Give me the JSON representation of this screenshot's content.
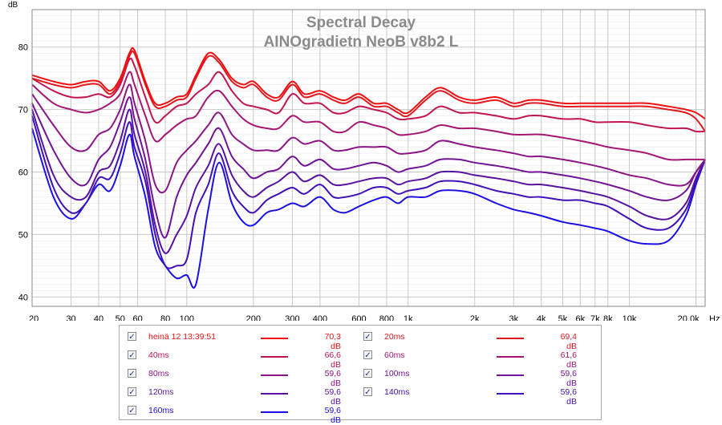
{
  "chart_data": {
    "type": "line",
    "title": "Spectral Decay",
    "subtitle": "AINOgradietn NeoB v8b2 L",
    "ylabel": "dB",
    "xlabel": "Hz",
    "xscale": "log",
    "xlim": [
      20,
      22000
    ],
    "ylim": [
      38.5,
      86
    ],
    "yticks": [
      40,
      50,
      60,
      70,
      80
    ],
    "xticks": [
      {
        "v": 20,
        "label": "20"
      },
      {
        "v": 30,
        "label": "30"
      },
      {
        "v": 40,
        "label": "40"
      },
      {
        "v": 50,
        "label": "50"
      },
      {
        "v": 60,
        "label": "60"
      },
      {
        "v": 80,
        "label": "80"
      },
      {
        "v": 100,
        "label": "100"
      },
      {
        "v": 200,
        "label": "200"
      },
      {
        "v": 300,
        "label": "300"
      },
      {
        "v": 400,
        "label": "400"
      },
      {
        "v": 600,
        "label": "600"
      },
      {
        "v": 800,
        "label": "800"
      },
      {
        "v": 1000,
        "label": "1k"
      },
      {
        "v": 2000,
        "label": "2k"
      },
      {
        "v": 3000,
        "label": "3k"
      },
      {
        "v": 4000,
        "label": "4k"
      },
      {
        "v": 5000,
        "label": "5k"
      },
      {
        "v": 6000,
        "label": "6k"
      },
      {
        "v": 7000,
        "label": "7k"
      },
      {
        "v": 8000,
        "label": "8k"
      },
      {
        "v": 10000,
        "label": "10k"
      },
      {
        "v": 20000,
        "label": "20,0k"
      }
    ],
    "grid": true,
    "x": [
      20,
      25,
      30,
      35,
      40,
      45,
      50,
      55,
      58,
      65,
      72,
      80,
      90,
      100,
      110,
      125,
      140,
      160,
      180,
      200,
      230,
      260,
      300,
      340,
      400,
      460,
      520,
      600,
      700,
      800,
      900,
      1000,
      1200,
      1400,
      1700,
      2000,
      2500,
      3000,
      3500,
      4000,
      5000,
      6000,
      7000,
      8000,
      10000,
      12000,
      15000,
      18000,
      20000,
      22000
    ],
    "series": [
      {
        "name": "heinä 12 13:39:51",
        "value_label": "70,3 dB",
        "color": "#ee1010",
        "values": [
          75.5,
          74.5,
          74,
          74.5,
          74.5,
          73,
          75,
          79,
          79.5,
          74.5,
          71,
          71,
          72,
          72.5,
          75.5,
          79,
          78,
          75,
          74,
          74.5,
          72.5,
          72,
          74.5,
          72.5,
          73,
          72,
          71.5,
          72.5,
          71,
          71,
          70,
          69.5,
          72,
          73.5,
          72,
          71.5,
          72,
          71,
          71.5,
          71.5,
          71,
          71,
          71,
          71,
          71,
          71,
          70.5,
          70,
          69.5,
          68.5
        ]
      },
      {
        "name": "20ms",
        "value_label": "69,4 dB",
        "color": "#e4171e",
        "values": [
          75,
          74,
          73.5,
          74,
          74,
          72.5,
          74.5,
          78.5,
          79,
          74,
          70.5,
          70.5,
          71.5,
          72,
          75,
          78.5,
          77.5,
          74.5,
          73.5,
          74,
          72,
          71.5,
          74,
          72,
          72.5,
          71.5,
          71,
          72,
          70.5,
          70.5,
          69.5,
          69,
          71.5,
          73,
          71.5,
          71,
          71.5,
          70.5,
          71,
          71,
          70.5,
          70.5,
          70.5,
          70.5,
          70.5,
          70.5,
          70,
          69.5,
          68.5,
          66.5
        ]
      },
      {
        "name": "40ms",
        "value_label": "66,6 dB",
        "color": "#c2154f",
        "values": [
          75,
          73,
          72,
          72,
          72.5,
          72,
          74,
          78,
          77,
          72,
          68,
          69,
          70.5,
          71,
          72.5,
          74,
          76,
          73,
          71,
          70.5,
          70,
          69.5,
          72.5,
          71,
          71,
          69.5,
          69.5,
          70.5,
          70,
          69.5,
          68.5,
          68.5,
          69,
          70.5,
          69.5,
          69.5,
          69,
          68.5,
          69,
          69,
          68.5,
          68.5,
          68,
          68,
          68,
          67.5,
          67,
          67,
          66.5,
          66.5
        ]
      },
      {
        "name": "60ms",
        "value_label": "61,6 dB",
        "color": "#a51672",
        "values": [
          74,
          71,
          70,
          69.5,
          70,
          71,
          72.5,
          76,
          74,
          69,
          65,
          66,
          67.5,
          68.5,
          69,
          72,
          73,
          70.5,
          68.5,
          67.5,
          67,
          67,
          69,
          68,
          68,
          66.5,
          66.5,
          68,
          67.5,
          67,
          66,
          66,
          66.5,
          67.5,
          67,
          67,
          66.5,
          66,
          66,
          66,
          65.5,
          65,
          64.5,
          64,
          63.5,
          63,
          62,
          62,
          62,
          62
        ]
      },
      {
        "name": "80ms",
        "value_label": "59,6 dB",
        "color": "#8b1487",
        "values": [
          72.5,
          67.5,
          64,
          63.5,
          66,
          67,
          70,
          74,
          71,
          65,
          58,
          57,
          61.5,
          63.5,
          65,
          67.5,
          69.5,
          66,
          64.5,
          63.5,
          63.5,
          63.5,
          65.5,
          64.5,
          65,
          63.5,
          63.5,
          64,
          64,
          64,
          63,
          63,
          63.5,
          65,
          64.5,
          64,
          63.5,
          63,
          62.5,
          62.5,
          62,
          61.5,
          61,
          60.5,
          59.5,
          59,
          58,
          58,
          60,
          62
        ]
      },
      {
        "name": "100ms",
        "value_label": "59,6 dB",
        "color": "#701394",
        "values": [
          71,
          63.5,
          59,
          58,
          62,
          64,
          68,
          72,
          68.5,
          62,
          54,
          49.5,
          56,
          59.5,
          61.5,
          64.5,
          67,
          62.5,
          60.5,
          59,
          60,
          60.5,
          62.5,
          61,
          62,
          60.5,
          60.5,
          61,
          61.5,
          61,
          60,
          60.5,
          61,
          62,
          62,
          61.5,
          61,
          60.5,
          60,
          60,
          59.5,
          59,
          58.5,
          58,
          57,
          56,
          55.5,
          57,
          60,
          62
        ]
      },
      {
        "name": "120ms",
        "value_label": "59,6 dB",
        "color": "#57139f",
        "values": [
          70,
          59.5,
          56,
          56,
          60,
          61,
          65,
          70,
          66,
          60,
          51.5,
          47,
          50,
          53,
          57.5,
          61,
          64.5,
          59.5,
          57,
          56,
          57.5,
          58.5,
          60,
          58.5,
          59.5,
          58,
          58,
          58.5,
          59,
          59,
          58,
          58.5,
          59,
          60,
          60,
          59.5,
          59,
          58.5,
          58,
          58,
          57.5,
          57,
          56.5,
          56,
          54.5,
          53,
          52.5,
          55,
          59,
          62
        ]
      },
      {
        "name": "140ms",
        "value_label": "59,6 dB",
        "color": "#3f11b7",
        "values": [
          69,
          57.5,
          53.5,
          55,
          59,
          59,
          63,
          68,
          64,
          58.5,
          50,
          45,
          45,
          46,
          53.5,
          58,
          63,
          57,
          54.5,
          53.5,
          55.5,
          56.5,
          57.5,
          56.5,
          58,
          56,
          56,
          56.5,
          57.5,
          57.5,
          56.5,
          57,
          57.5,
          58.5,
          58.5,
          58,
          57,
          56.5,
          56,
          56,
          55.5,
          55.5,
          55,
          54.5,
          52.5,
          51,
          51,
          54,
          58.5,
          62
        ]
      },
      {
        "name": "160ms",
        "value_label": "59,6 dB",
        "color": "#1b0fe6",
        "values": [
          67,
          56,
          52.5,
          55,
          58,
          57,
          61,
          66,
          62.5,
          56,
          48,
          45,
          43,
          43.5,
          42,
          54,
          61.5,
          55,
          52,
          51.5,
          53.5,
          54,
          55,
          54.5,
          56,
          54,
          53.5,
          54.5,
          55.5,
          56,
          55,
          56,
          56,
          57,
          57,
          56.5,
          55,
          54,
          53.5,
          53,
          52,
          51.5,
          51,
          50.5,
          49,
          48.5,
          49,
          53,
          58,
          62
        ]
      }
    ]
  },
  "legend": {
    "items": [
      {
        "label": "heinä 12 13:39:51",
        "value": "70,3 dB",
        "color": "#ee1010",
        "checked": true
      },
      {
        "label": "20ms",
        "value": "69,4 dB",
        "color": "#e4171e",
        "checked": true
      },
      {
        "label": "40ms",
        "value": "66,6 dB",
        "color": "#c2154f",
        "checked": true
      },
      {
        "label": "60ms",
        "value": "61,6 dB",
        "color": "#a51672",
        "checked": true
      },
      {
        "label": "80ms",
        "value": "59,6 dB",
        "color": "#8b1487",
        "checked": true
      },
      {
        "label": "100ms",
        "value": "59,6 dB",
        "color": "#701394",
        "checked": true
      },
      {
        "label": "120ms",
        "value": "59,6 dB",
        "color": "#57139f",
        "checked": true
      },
      {
        "label": "140ms",
        "value": "59,6 dB",
        "color": "#3f11b7",
        "checked": true
      },
      {
        "label": "160ms",
        "value": "59,6 dB",
        "color": "#1b0fe6",
        "checked": true
      }
    ]
  }
}
